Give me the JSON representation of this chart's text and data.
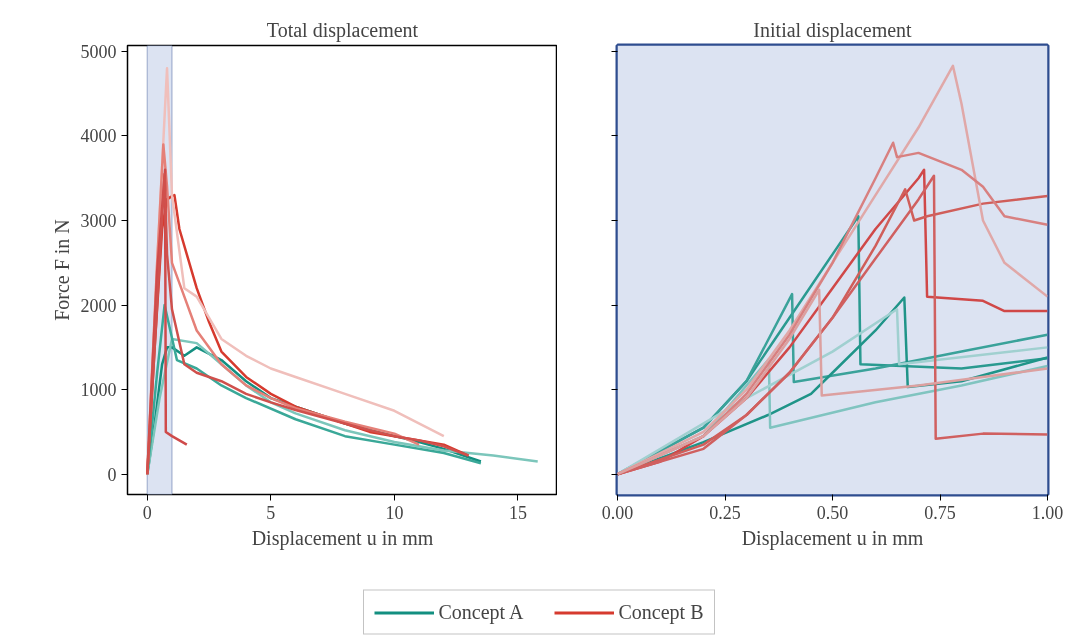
{
  "chart_data": [
    {
      "type": "line",
      "title": "Total displacement",
      "xlabel": "Displacement u in mm",
      "ylabel": "Force F in N",
      "xlim": [
        -0.8,
        16.6
      ],
      "ylim": [
        -240,
        5070
      ],
      "xticks": [
        0,
        5,
        10,
        15
      ],
      "yticks": [
        0,
        1000,
        2000,
        3000,
        4000,
        5000
      ],
      "grid": false,
      "legend": "bottom",
      "line_style": "solid",
      "marker": "none",
      "bands": [
        {
          "axis": "x",
          "from": 0,
          "to": 1,
          "color": "#dce3f2"
        }
      ],
      "series": [
        {
          "name": "Concept A",
          "color": "#138f80",
          "x": [
            0,
            0.3,
            0.6,
            0.8,
            1.0,
            1.5,
            2,
            3,
            4,
            5,
            6,
            7,
            8,
            9,
            10,
            11,
            12,
            13.5
          ],
          "values": [
            0,
            600,
            1300,
            1500,
            1500,
            1400,
            1500,
            1350,
            1100,
            900,
            800,
            700,
            600,
            520,
            450,
            380,
            300,
            150
          ]
        },
        {
          "color": "#7cc6bb",
          "x": [
            0,
            0.5,
            1.0,
            2,
            3,
            4,
            5,
            6,
            8,
            10,
            12,
            14,
            15.8
          ],
          "values": [
            0,
            900,
            1600,
            1550,
            1300,
            1050,
            850,
            720,
            520,
            380,
            280,
            220,
            150
          ]
        },
        {
          "color": "#3aa898",
          "x": [
            0,
            0.4,
            0.7,
            1.2,
            2,
            3,
            4,
            6,
            8,
            10,
            12,
            13.5
          ],
          "values": [
            0,
            1200,
            2000,
            1350,
            1250,
            1050,
            900,
            650,
            450,
            350,
            250,
            130
          ]
        },
        {
          "name": "Concept B",
          "color": "#d63a2e",
          "x": [
            0,
            0.3,
            0.6,
            0.8,
            0.95,
            1.1,
            1.3,
            1.6,
            2.0,
            2.5,
            3.0,
            4,
            5,
            6,
            7,
            8,
            9,
            10,
            11,
            12,
            13
          ],
          "values": [
            0,
            1500,
            2900,
            3250,
            3280,
            3300,
            2900,
            2600,
            2200,
            1800,
            1450,
            1150,
            950,
            800,
            700,
            600,
            500,
            450,
            400,
            350,
            220
          ]
        },
        {
          "color": "#f0bfbb",
          "x": [
            0,
            0.4,
            0.8,
            1.0,
            1.5,
            2,
            3,
            4,
            5,
            6,
            8,
            10,
            12
          ],
          "values": [
            0,
            2500,
            4800,
            3300,
            2200,
            2100,
            1600,
            1400,
            1250,
            1150,
            950,
            750,
            450
          ]
        },
        {
          "color": "#e58078",
          "x": [
            0,
            0.4,
            0.65,
            0.8,
            1.0,
            1.5,
            2,
            3,
            4,
            5,
            6,
            8,
            10,
            11
          ],
          "values": [
            0,
            2500,
            3900,
            3400,
            2500,
            2100,
            1700,
            1300,
            1050,
            900,
            780,
            620,
            480,
            350
          ]
        },
        {
          "color": "#cf4a4a",
          "x": [
            0,
            0.4,
            0.72,
            0.75,
            1.0,
            1.6
          ],
          "values": [
            0,
            2400,
            3600,
            500,
            450,
            350
          ]
        },
        {
          "color": "#d0504c",
          "x": [
            0,
            0.4,
            0.7,
            0.8,
            1.0,
            1.5,
            2,
            3,
            4,
            5,
            6,
            7,
            8,
            9,
            10,
            11,
            12,
            13
          ],
          "values": [
            0,
            2000,
            3550,
            2600,
            1950,
            1300,
            1200,
            1100,
            950,
            850,
            760,
            680,
            600,
            520,
            450,
            400,
            330,
            220
          ]
        }
      ]
    },
    {
      "type": "line",
      "title": "Initial displacement",
      "xlabel": "Displacement u in mm",
      "xlim": [
        0,
        1
      ],
      "ylim": [
        -240,
        5070
      ],
      "xticks": [
        {
          "value": 0,
          "label": "0.00"
        },
        {
          "value": 0.25,
          "label": "0.25"
        },
        {
          "value": 0.5,
          "label": "0.50"
        },
        {
          "value": 0.75,
          "label": "0.75"
        },
        {
          "value": 1,
          "label": "1.00"
        }
      ],
      "yticks": [
        0,
        1000,
        2000,
        3000,
        4000,
        5000
      ],
      "tick_labels": "x",
      "grid": false,
      "line_style": "solid",
      "marker": "none",
      "bands": [
        {
          "axis": "x",
          "from": 0,
          "to": 1,
          "color": "#dce3f2"
        }
      ],
      "series": [
        {
          "color": "#2a9a90",
          "x": [
            0,
            0.2,
            0.3,
            0.4,
            0.5,
            0.56,
            0.565,
            0.8,
            1.0
          ],
          "values": [
            0,
            550,
            1100,
            1850,
            2600,
            3050,
            1300,
            1250,
            1370
          ]
        },
        {
          "color": "#3aa29a",
          "x": [
            0,
            0.2,
            0.3,
            0.406,
            0.41,
            0.6,
            0.8,
            1.0
          ],
          "values": [
            0,
            550,
            1100,
            2130,
            1090,
            1250,
            1450,
            1650
          ]
        },
        {
          "color": "#1f9488",
          "x": [
            0,
            0.2,
            0.35,
            0.45,
            0.5,
            0.6,
            0.667,
            0.675,
            0.8,
            1.0
          ],
          "values": [
            0,
            380,
            700,
            950,
            1200,
            1700,
            2090,
            1030,
            1100,
            1380
          ]
        },
        {
          "color": "#80c4c0",
          "x": [
            0,
            0.2,
            0.352,
            0.355,
            0.6,
            0.8,
            1.0
          ],
          "values": [
            0,
            450,
            1360,
            550,
            850,
            1050,
            1280
          ]
        },
        {
          "color": "#a0d0d0",
          "x": [
            0,
            0.3,
            0.5,
            0.65,
            0.655,
            1.0
          ],
          "values": [
            0,
            900,
            1450,
            1950,
            1300,
            1500
          ]
        },
        {
          "color": "#d04848",
          "x": [
            0,
            0.1,
            0.2,
            0.3,
            0.4,
            0.5,
            0.6,
            0.7,
            0.713,
            0.72,
            0.85,
            0.9,
            1.0
          ],
          "values": [
            0,
            150,
            450,
            900,
            1500,
            2200,
            2900,
            3500,
            3600,
            2100,
            2050,
            1930,
            1930
          ]
        },
        {
          "color": "#d05e5a",
          "x": [
            0,
            0.2,
            0.3,
            0.4,
            0.5,
            0.6,
            0.669,
            0.69,
            0.72,
            0.85,
            1.0
          ],
          "values": [
            0,
            350,
            700,
            1200,
            1850,
            2700,
            3370,
            3000,
            3050,
            3200,
            3290
          ]
        },
        {
          "color": "#e0a8a8",
          "x": [
            0,
            0.2,
            0.3,
            0.4,
            0.5,
            0.6,
            0.7,
            0.78,
            0.8,
            0.85,
            0.9,
            1.0
          ],
          "values": [
            0,
            500,
            1000,
            1700,
            2500,
            3300,
            4100,
            4830,
            4380,
            3000,
            2500,
            2100
          ]
        },
        {
          "color": "#d88080",
          "x": [
            0,
            0.2,
            0.3,
            0.4,
            0.5,
            0.6,
            0.641,
            0.65,
            0.7,
            0.8,
            0.85,
            0.9,
            1.0
          ],
          "values": [
            0,
            450,
            950,
            1650,
            2500,
            3500,
            3920,
            3750,
            3800,
            3600,
            3400,
            3050,
            2950
          ]
        },
        {
          "color": "#d06060",
          "x": [
            0,
            0.2,
            0.3,
            0.4,
            0.5,
            0.6,
            0.7,
            0.736,
            0.74,
            0.85,
            1.0
          ],
          "values": [
            0,
            300,
            700,
            1200,
            1850,
            2550,
            3250,
            3530,
            420,
            480,
            470
          ]
        },
        {
          "color": "#dca0a0",
          "x": [
            0,
            0.2,
            0.3,
            0.4,
            0.469,
            0.475,
            0.7,
            0.85,
            1.0
          ],
          "values": [
            0,
            450,
            900,
            1600,
            2180,
            930,
            1050,
            1150,
            1250
          ]
        }
      ]
    }
  ]
}
